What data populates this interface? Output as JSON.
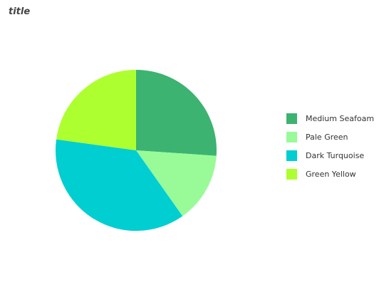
{
  "chart_data": {
    "type": "pie",
    "title": "title",
    "slices": [
      {
        "label": "Medium Seafoam",
        "value": 24,
        "color": "#3cb371"
      },
      {
        "label": "Pale Green",
        "value": 13,
        "color": "#98fb98"
      },
      {
        "label": "Dark Turquoise",
        "value": 34,
        "color": "#00ced1"
      },
      {
        "label": "Green Yellow",
        "value": 21,
        "color": "#adff2f"
      }
    ],
    "legend_position": "right"
  }
}
